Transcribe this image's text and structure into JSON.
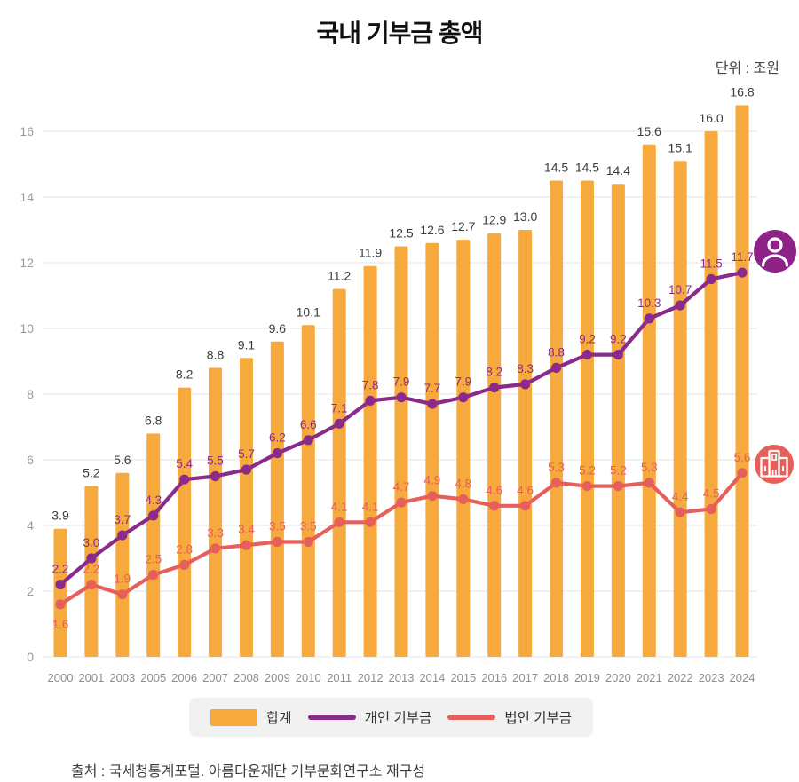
{
  "title": "국내 기부금 총액",
  "unit_label": "단위 : 조원",
  "source": "출처 : 국세청통계포털. 아름다운재단 기부문화연구소 재구성",
  "legend": [
    {
      "label": "합계",
      "type": "bar",
      "color": "#F6A93C"
    },
    {
      "label": "개인 기부금",
      "type": "line",
      "color": "#8A2B8C"
    },
    {
      "label": "법인 기부금",
      "type": "line",
      "color": "#E5605B"
    }
  ],
  "icons": [
    {
      "name": "person-icon",
      "color": "#8E2287"
    },
    {
      "name": "building-icon",
      "color": "#E5605B"
    }
  ],
  "colors": {
    "bar_value_label": "#3b3b3b",
    "axis_label": "#9b9b9b",
    "x_axis_label": "#8d8d8d",
    "gridline": "#e3e3e3",
    "legend_background": "#f1f1f2"
  },
  "chart_data": {
    "type": "bar",
    "title": "국내 기부금 총액",
    "unit": "조원",
    "categories": [
      "2000",
      "2001",
      "2003",
      "2005",
      "2006",
      "2007",
      "2008",
      "2009",
      "2010",
      "2011",
      "2012",
      "2013",
      "2014",
      "2015",
      "2016",
      "2017",
      "2018",
      "2019",
      "2020",
      "2021",
      "2022",
      "2023",
      "2024"
    ],
    "series": [
      {
        "name": "합계",
        "type": "bar",
        "color": "#F6A93C",
        "values": [
          3.9,
          5.2,
          5.6,
          6.8,
          8.2,
          8.8,
          9.1,
          9.6,
          10.1,
          11.2,
          11.9,
          12.5,
          12.6,
          12.7,
          12.9,
          13.0,
          14.5,
          14.5,
          14.4,
          15.6,
          15.1,
          16.0,
          16.8
        ]
      },
      {
        "name": "개인 기부금",
        "type": "line",
        "color": "#8A2B8C",
        "values": [
          2.2,
          3.0,
          3.7,
          4.3,
          5.4,
          5.5,
          5.7,
          6.2,
          6.6,
          7.1,
          7.8,
          7.9,
          7.7,
          7.9,
          8.2,
          8.3,
          8.8,
          9.2,
          9.2,
          10.3,
          10.7,
          11.5,
          11.7
        ]
      },
      {
        "name": "법인 기부금",
        "type": "line",
        "color": "#E5605B",
        "values": [
          1.6,
          2.2,
          1.9,
          2.5,
          2.8,
          3.3,
          3.4,
          3.5,
          3.5,
          4.1,
          4.1,
          4.7,
          4.9,
          4.8,
          4.6,
          4.6,
          5.3,
          5.2,
          5.2,
          5.3,
          4.4,
          4.5,
          5.6
        ]
      }
    ],
    "ylim": [
      0,
      17.2
    ],
    "yticks": [
      0,
      2,
      4,
      6,
      8,
      10,
      12,
      14,
      16
    ],
    "grid": true,
    "legend_position": "bottom",
    "value_labels": true,
    "xlabel": "",
    "ylabel": ""
  }
}
